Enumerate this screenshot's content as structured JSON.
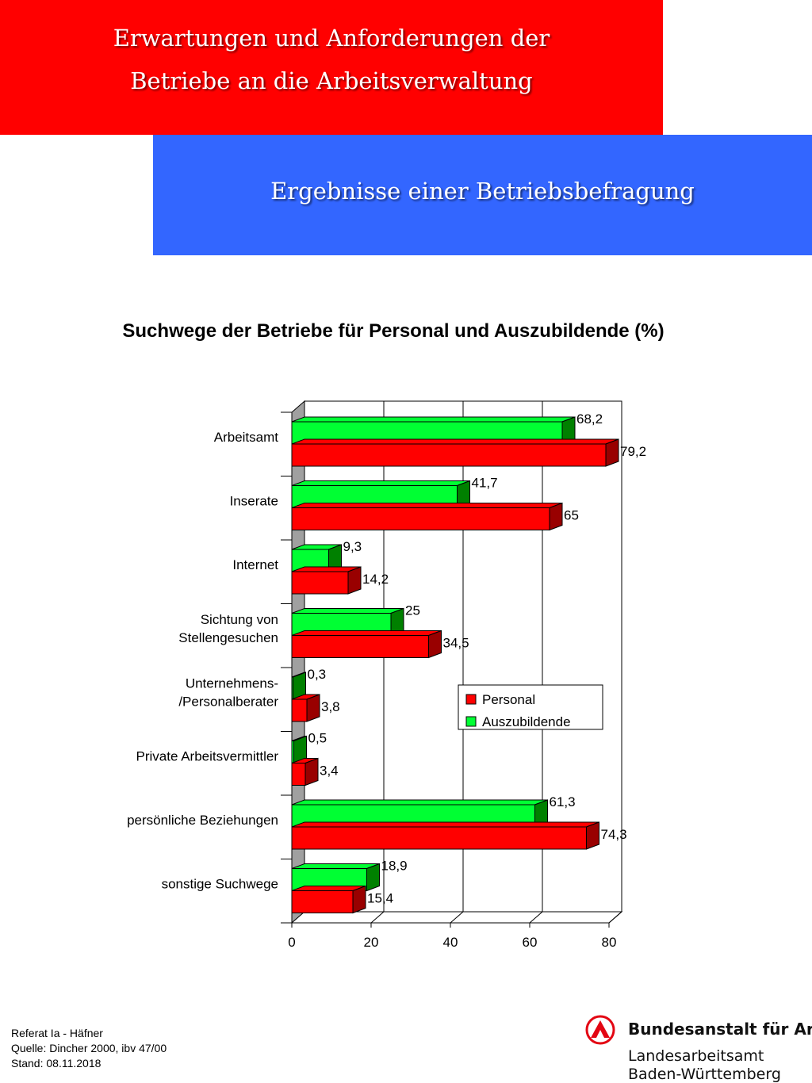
{
  "header": {
    "title_line1": "Erwartungen und Anforderungen der",
    "title_line2": "Betriebe an die Arbeitsverwaltung",
    "subtitle": "Ergebnisse einer Betriebsbefragung",
    "red_color": "#ff0000",
    "blue_color": "#3366ff"
  },
  "chart_data": {
    "type": "bar",
    "orientation": "horizontal",
    "title": "Suchwege der Betriebe für Personal und Auszubildende (%)",
    "categories": [
      "Arbeitsamt",
      "Inserate",
      "Internet",
      "Sichtung von Stellengesuchen",
      "Unternehmens- /Personalberater",
      "Private Arbeitsvermittler",
      "persönliche Beziehungen",
      "sonstige Suchwege"
    ],
    "category_lines": [
      [
        "Arbeitsamt"
      ],
      [
        "Inserate"
      ],
      [
        "Internet"
      ],
      [
        "Sichtung von",
        "Stellengesuchen"
      ],
      [
        "Unternehmens-",
        "/Personalberater"
      ],
      [
        "Private Arbeitsvermittler"
      ],
      [
        "persönliche Beziehungen"
      ],
      [
        "sonstige Suchwege"
      ]
    ],
    "series": [
      {
        "name": "Auszubildende",
        "color": "#00ff33",
        "side_color": "#008000",
        "values": [
          68.2,
          41.7,
          9.3,
          25,
          0.3,
          0.5,
          61.3,
          18.9
        ],
        "labels": [
          "68,2",
          "41,7",
          "9,3",
          "25",
          "0,3",
          "0,5",
          "61,3",
          "18,9"
        ]
      },
      {
        "name": "Personal",
        "color": "#ff0000",
        "side_color": "#990000",
        "values": [
          79.2,
          65,
          14.2,
          34.5,
          3.8,
          3.4,
          74.3,
          15.4
        ],
        "labels": [
          "79,2",
          "65",
          "14,2",
          "34,5",
          "3,8",
          "3,4",
          "74,3",
          "15,4"
        ]
      }
    ],
    "xlim": [
      0,
      80
    ],
    "xticks": [
      "0",
      "20",
      "40",
      "60",
      "80"
    ],
    "grid": true,
    "legend": {
      "placement": "inside-right",
      "items": [
        {
          "name": "Personal",
          "color": "#ff0000"
        },
        {
          "name": "Auszubildende",
          "color": "#00ff33"
        }
      ]
    }
  },
  "footer": {
    "line1": "Referat Ia - Häfner",
    "line2": "Quelle: Dincher 2000, ibv 47/00",
    "line3": "Stand: 08.11.2018"
  },
  "logo": {
    "name": "Bundesanstalt für Arbeit",
    "line2": "Landesarbeitsamt",
    "line3": "Baden-Württemberg",
    "icon": "ba-logo-icon"
  }
}
